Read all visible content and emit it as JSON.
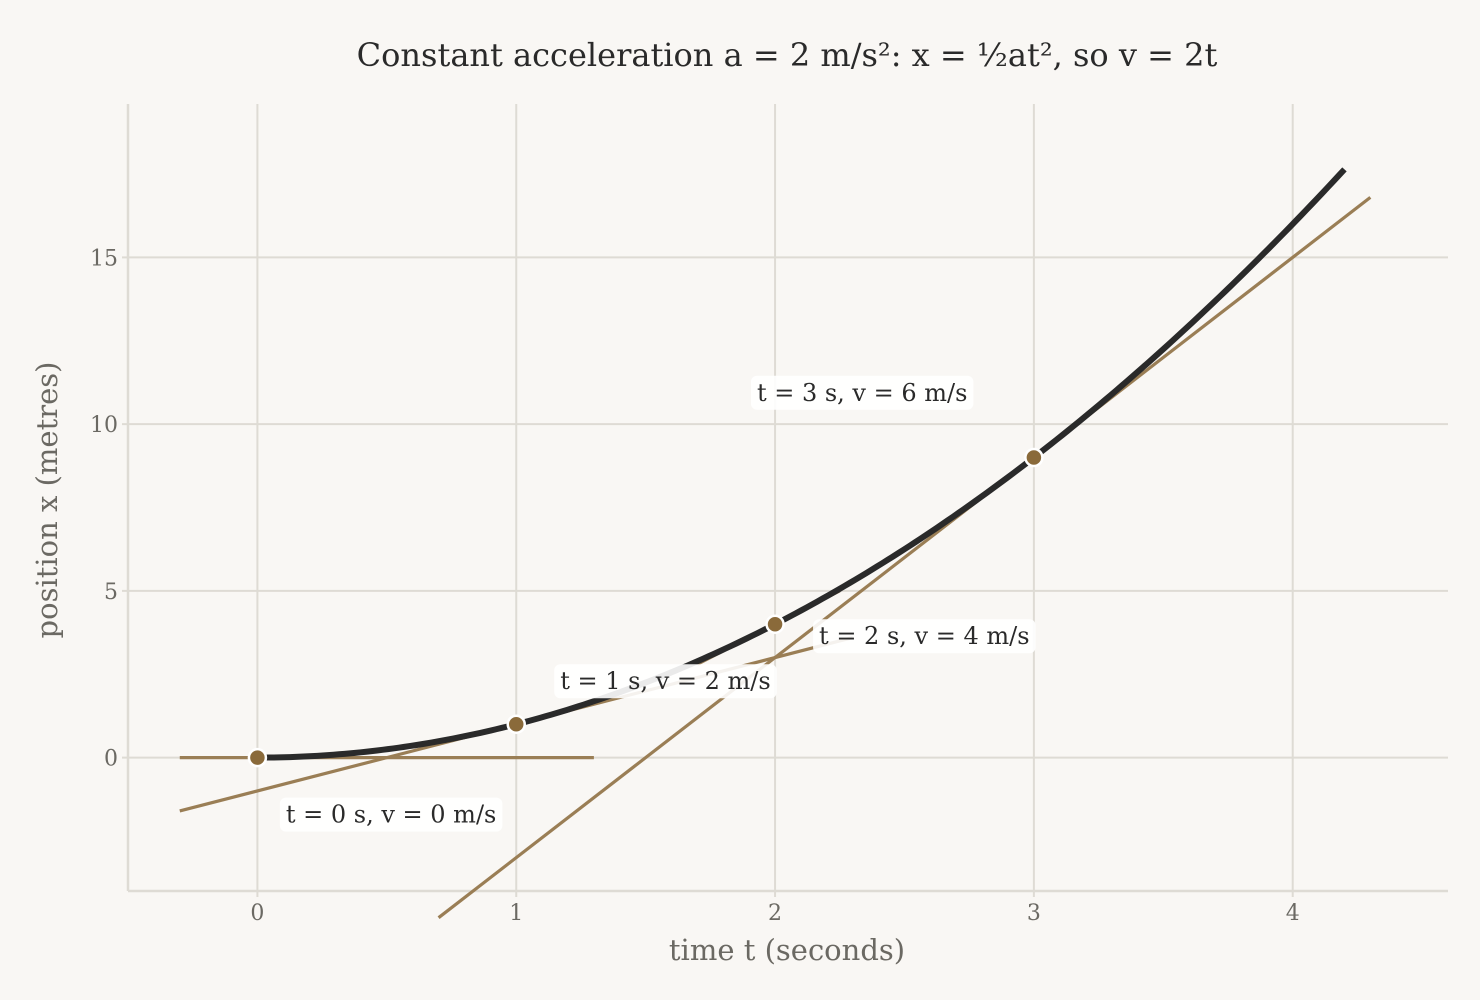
{
  "chart_data": {
    "type": "line",
    "title": "Constant acceleration a = 2 m/s²:   x = ½at²,  so  v = 2t",
    "xlabel": "time  t  (seconds)",
    "ylabel": "position  x  (metres)",
    "xlim": [
      -0.5,
      4.6
    ],
    "ylim": [
      -4,
      19.6
    ],
    "xticks": [
      0,
      1,
      2,
      3,
      4
    ],
    "yticks": [
      0,
      5,
      10,
      15
    ],
    "grid": true,
    "curve": {
      "equation": "x = t^2",
      "t_range": [
        0,
        4.2
      ],
      "color": "#2a2a2a"
    },
    "points": [
      {
        "t": 0,
        "x": 0
      },
      {
        "t": 1,
        "x": 1
      },
      {
        "t": 2,
        "x": 4
      },
      {
        "t": 3,
        "x": 9
      }
    ],
    "point_color": "#8a6a3a",
    "tangent_color": "#9a7e55",
    "tangents": [
      {
        "t": 0,
        "x": 0,
        "slope": 0,
        "t_range": [
          -0.3,
          1.3
        ]
      },
      {
        "t": 1,
        "x": 1,
        "slope": 2,
        "t_range": [
          -0.3,
          2.3
        ]
      },
      {
        "t": 2,
        "x": 4,
        "slope": 4,
        "t_range": [
          1.7,
          2.25
        ]
      },
      {
        "t": 3,
        "x": 9,
        "slope": 6,
        "t_range": [
          0.7,
          4.3
        ]
      }
    ],
    "annotations": [
      {
        "text": "t = 0 s,  v = 0 m/s",
        "t": 0.11,
        "x": -1.95
      },
      {
        "text": "t = 1 s,  v = 2 m/s",
        "t": 1.17,
        "x": 2.05
      },
      {
        "text": "t = 2 s,  v = 4 m/s",
        "t": 2.17,
        "x": 3.4
      },
      {
        "text": "t = 3 s,  v = 6 m/s",
        "t": 1.93,
        "x": 10.7
      }
    ]
  }
}
